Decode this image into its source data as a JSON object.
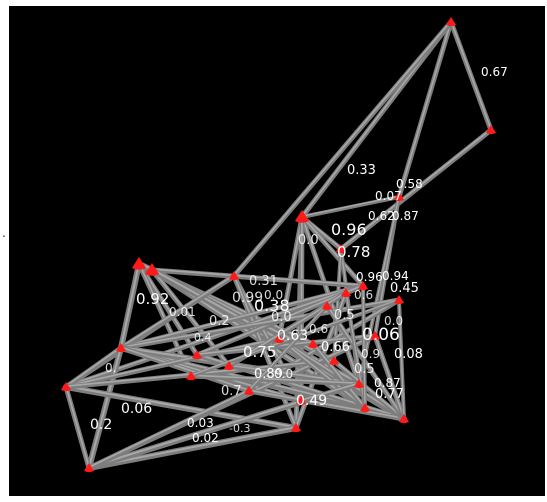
{
  "page_marker": ".",
  "colors": {
    "background": "#000000",
    "edge": "#7d7d7d",
    "edge_highlight": "#a8a8a8",
    "node": "#ff1a1a",
    "label": "#ffffff"
  },
  "labels": [
    "0.67",
    "0.33",
    "0.58",
    "0.07",
    "0.62",
    "0.87",
    "0.96",
    "0.78",
    "0.96",
    "0.94",
    "0.45",
    "0.92",
    "0.38",
    "0.63",
    "0.75",
    "0.66",
    "0.06",
    "0.08",
    "0.89",
    "0.49",
    "0.87",
    "0.77",
    "0.06",
    "0.2",
    "0.03",
    "0.02"
  ]
}
